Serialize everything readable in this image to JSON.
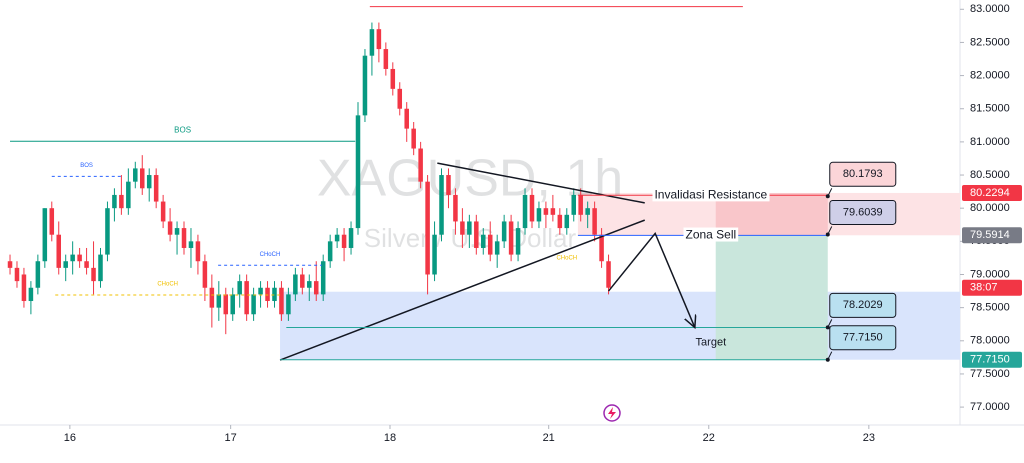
{
  "chart_data": {
    "type": "candlestick",
    "title": "XAGUSD, 1h",
    "subtitle": "Silver / U.S. Dollar",
    "up_color": "#089981",
    "down_color": "#f23645",
    "xlim": [
      -1.44,
      136.5
    ],
    "ylim": [
      76.73,
      83.14
    ],
    "xticks": [
      {
        "value": 8.6,
        "label": "16"
      },
      {
        "value": 31.7,
        "label": "17"
      },
      {
        "value": 54.6,
        "label": "18"
      },
      {
        "value": 77.4,
        "label": "21"
      },
      {
        "value": 100.4,
        "label": "22"
      },
      {
        "value": 123.4,
        "label": "23"
      }
    ],
    "yticks": [
      {
        "value": 83,
        "label": "83.0000"
      },
      {
        "value": 82.5,
        "label": "82.5000"
      },
      {
        "value": 82,
        "label": "82.0000"
      },
      {
        "value": 81.5,
        "label": "81.5000"
      },
      {
        "value": 81,
        "label": "81.0000"
      },
      {
        "value": 80.5,
        "label": "80.5000"
      },
      {
        "value": 80,
        "label": "80.0000"
      },
      {
        "value": 79.5,
        "label": "79.5000"
      },
      {
        "value": 79,
        "label": "79.0000"
      },
      {
        "value": 78.5,
        "label": "78.5000"
      },
      {
        "value": 78,
        "label": "78.0000"
      },
      {
        "value": 77.5,
        "label": "77.5000"
      },
      {
        "value": 77,
        "label": "77.0000"
      }
    ],
    "candles": [
      [
        79.2,
        79.3,
        79.0,
        79.1
      ],
      [
        79.1,
        79.2,
        78.8,
        78.9
      ],
      [
        79.0,
        79.1,
        78.5,
        78.6
      ],
      [
        78.6,
        78.9,
        78.4,
        78.8
      ],
      [
        78.8,
        79.3,
        78.7,
        79.2
      ],
      [
        79.2,
        80.0,
        79.1,
        80.0
      ],
      [
        80.0,
        80.1,
        79.5,
        79.6
      ],
      [
        79.6,
        79.8,
        79.0,
        79.1
      ],
      [
        79.1,
        79.3,
        78.9,
        79.2
      ],
      [
        79.2,
        79.5,
        79.0,
        79.3
      ],
      [
        79.3,
        79.4,
        79.1,
        79.2
      ],
      [
        79.2,
        79.4,
        79.0,
        79.1
      ],
      [
        79.1,
        79.5,
        78.7,
        78.9
      ],
      [
        78.9,
        79.4,
        78.8,
        79.3
      ],
      [
        79.3,
        80.1,
        79.2,
        80.0
      ],
      [
        80.0,
        80.3,
        79.8,
        80.2
      ],
      [
        80.2,
        80.5,
        79.9,
        80.0
      ],
      [
        80.0,
        80.6,
        79.9,
        80.4
      ],
      [
        80.4,
        80.7,
        80.3,
        80.6
      ],
      [
        80.6,
        80.8,
        80.2,
        80.3
      ],
      [
        80.3,
        80.6,
        80.1,
        80.5
      ],
      [
        80.5,
        80.6,
        80.0,
        80.1
      ],
      [
        80.1,
        80.2,
        79.7,
        79.8
      ],
      [
        79.8,
        80.0,
        79.5,
        79.6
      ],
      [
        79.6,
        79.8,
        79.3,
        79.7
      ],
      [
        79.7,
        79.8,
        79.3,
        79.4
      ],
      [
        79.4,
        79.7,
        79.1,
        79.5
      ],
      [
        79.5,
        79.6,
        79.0,
        79.2
      ],
      [
        79.2,
        79.3,
        78.6,
        78.8
      ],
      [
        78.8,
        79.0,
        78.2,
        78.5
      ],
      [
        78.5,
        78.9,
        78.3,
        78.7
      ],
      [
        78.7,
        78.8,
        78.1,
        78.4
      ],
      [
        78.4,
        78.8,
        78.3,
        78.7
      ],
      [
        78.7,
        79.0,
        78.5,
        78.9
      ],
      [
        78.9,
        79.0,
        78.3,
        78.4
      ],
      [
        78.4,
        78.8,
        78.3,
        78.7
      ],
      [
        78.7,
        78.9,
        78.5,
        78.8
      ],
      [
        78.8,
        78.9,
        78.5,
        78.6
      ],
      [
        78.6,
        78.9,
        78.5,
        78.8
      ],
      [
        78.8,
        78.9,
        78.3,
        78.4
      ],
      [
        78.4,
        78.8,
        78.3,
        78.7
      ],
      [
        78.7,
        79.1,
        78.6,
        79.0
      ],
      [
        79.0,
        79.1,
        78.7,
        78.8
      ],
      [
        78.8,
        79.0,
        78.6,
        78.9
      ],
      [
        78.9,
        79.2,
        78.6,
        78.7
      ],
      [
        78.7,
        79.3,
        78.6,
        79.2
      ],
      [
        79.2,
        79.6,
        79.1,
        79.5
      ],
      [
        79.5,
        79.7,
        79.4,
        79.6
      ],
      [
        79.6,
        79.7,
        79.2,
        79.4
      ],
      [
        79.4,
        79.8,
        79.3,
        79.7
      ],
      [
        79.7,
        81.6,
        79.6,
        81.4
      ],
      [
        81.4,
        82.4,
        81.3,
        82.3
      ],
      [
        82.3,
        82.8,
        82.0,
        82.7
      ],
      [
        82.7,
        82.8,
        82.2,
        82.4
      ],
      [
        82.4,
        82.5,
        82.0,
        82.1
      ],
      [
        82.1,
        82.2,
        81.7,
        81.8
      ],
      [
        81.8,
        81.9,
        81.4,
        81.5
      ],
      [
        81.5,
        81.6,
        81.0,
        81.2
      ],
      [
        81.2,
        81.3,
        80.8,
        80.9
      ],
      [
        80.9,
        81.0,
        80.3,
        80.4
      ],
      [
        80.4,
        80.5,
        78.7,
        79.0
      ],
      [
        79.0,
        79.8,
        78.9,
        79.6
      ],
      [
        79.6,
        80.6,
        79.5,
        80.5
      ],
      [
        80.5,
        80.6,
        80.0,
        80.2
      ],
      [
        80.2,
        80.3,
        79.6,
        79.8
      ],
      [
        79.8,
        80.0,
        79.4,
        79.6
      ],
      [
        79.6,
        79.9,
        79.4,
        79.8
      ],
      [
        79.8,
        79.9,
        79.3,
        79.4
      ],
      [
        79.4,
        79.7,
        79.3,
        79.6
      ],
      [
        79.6,
        79.8,
        79.2,
        79.3
      ],
      [
        79.3,
        79.6,
        79.1,
        79.5
      ],
      [
        79.5,
        79.9,
        79.4,
        79.8
      ],
      [
        79.8,
        79.9,
        79.2,
        79.3
      ],
      [
        79.3,
        79.8,
        79.2,
        79.7
      ],
      [
        79.7,
        80.3,
        79.6,
        80.2
      ],
      [
        80.2,
        80.3,
        79.7,
        79.8
      ],
      [
        79.8,
        80.1,
        79.7,
        80.0
      ],
      [
        80.0,
        80.1,
        79.7,
        79.9
      ],
      [
        80.0,
        80.2,
        79.8,
        79.9
      ],
      [
        79.9,
        80.0,
        79.6,
        79.7
      ],
      [
        79.7,
        80.0,
        79.6,
        79.9
      ],
      [
        79.9,
        80.3,
        79.8,
        80.2
      ],
      [
        80.2,
        80.3,
        79.8,
        79.9
      ],
      [
        79.9,
        80.1,
        79.7,
        80.0
      ],
      [
        80.0,
        80.1,
        79.5,
        79.6
      ],
      [
        79.6,
        79.7,
        79.1,
        79.2
      ],
      [
        79.2,
        79.3,
        78.7,
        78.8
      ]
    ],
    "zones": [
      {
        "x": [
          81.6,
          136.5
        ],
        "y": [
          79.5914,
          80.2294
        ],
        "color": "#fde3e5"
      },
      {
        "x": [
          101.4,
          117.5
        ],
        "y": [
          79.5914,
          80.2294
        ],
        "color": "#f9c6ca"
      },
      {
        "x": [
          38.8,
          136.5
        ],
        "y": [
          77.715,
          78.74
        ],
        "color": "#d9e4fc"
      },
      {
        "x": [
          101.4,
          117.5
        ],
        "y": [
          77.715,
          79.5914
        ],
        "color": "#c9e6dc"
      }
    ],
    "lines": [
      {
        "x": [
          51.7,
          105.3
        ],
        "y": [
          83.04,
          83.04
        ],
        "color": "#f23645"
      },
      {
        "x": [
          0,
          49.6
        ],
        "y": [
          81.01,
          81.01
        ],
        "color": "#089981",
        "label": "BOS"
      },
      {
        "x": [
          6,
          16
        ],
        "y": [
          80.48,
          80.48
        ],
        "color": "#2962ff",
        "dash": true,
        "label": "BOS"
      },
      {
        "x": [
          29.9,
          44.8
        ],
        "y": [
          79.14,
          79.14
        ],
        "color": "#2962ff",
        "dash": true,
        "label": "CHoCH"
      },
      {
        "x": [
          6.5,
          38.8
        ],
        "y": [
          78.69,
          78.69
        ],
        "color": "#f0c000",
        "dash": true,
        "label": "CHoCH"
      },
      {
        "x": [
          61.4,
          91.2
        ],
        "y": [
          80.68,
          80.08
        ],
        "color": "#131722"
      },
      {
        "x": [
          38.8,
          91.2
        ],
        "y": [
          77.71,
          79.82
        ],
        "color": "#131722"
      },
      {
        "x": [
          81.6,
          117.5
        ],
        "y": [
          80.196,
          80.196
        ],
        "color": "#f23645",
        "label": "Invalidasi Resistance"
      },
      {
        "x": [
          81.6,
          117.5
        ],
        "y": [
          79.59,
          79.59
        ],
        "color": "#2962ff",
        "label": "Zona Sell"
      },
      {
        "x": [
          39.7,
          117.5
        ],
        "y": [
          78.2,
          78.2
        ],
        "color": "#26a69a"
      },
      {
        "x": [
          38.8,
          117.5
        ],
        "y": [
          77.715,
          77.715
        ],
        "color": "#26a69a"
      },
      {
        "x": [
          86,
          92.7,
          98.4
        ],
        "y": [
          78.75,
          79.62,
          78.2
        ],
        "color": "#131722",
        "arrow": true,
        "label": "Target"
      }
    ],
    "notes": [
      {
        "text": "CHoCH",
        "x": 80,
        "y": 79.25,
        "color": "#f0c000"
      }
    ],
    "tags": [
      {
        "value": 80.1793,
        "label": "80.1793",
        "color": "#fbd5d8"
      },
      {
        "value": 79.6039,
        "label": "79.6039",
        "color": "#cfcfe8"
      },
      {
        "value": 78.2029,
        "label": "78.2029",
        "color": "#b9e0f0"
      },
      {
        "value": 77.715,
        "label": "77.7150",
        "color": "#b9e0f0"
      }
    ],
    "axis_tags": [
      {
        "value": 80.2294,
        "label": "80.2294",
        "color": "#f23645"
      },
      {
        "value": 79.5914,
        "label": "79.5914",
        "color": "#787b86"
      },
      {
        "label": "38:07",
        "color": "#f23645"
      },
      {
        "value": 77.715,
        "label": "77.7150",
        "color": "#26a69a"
      }
    ]
  }
}
